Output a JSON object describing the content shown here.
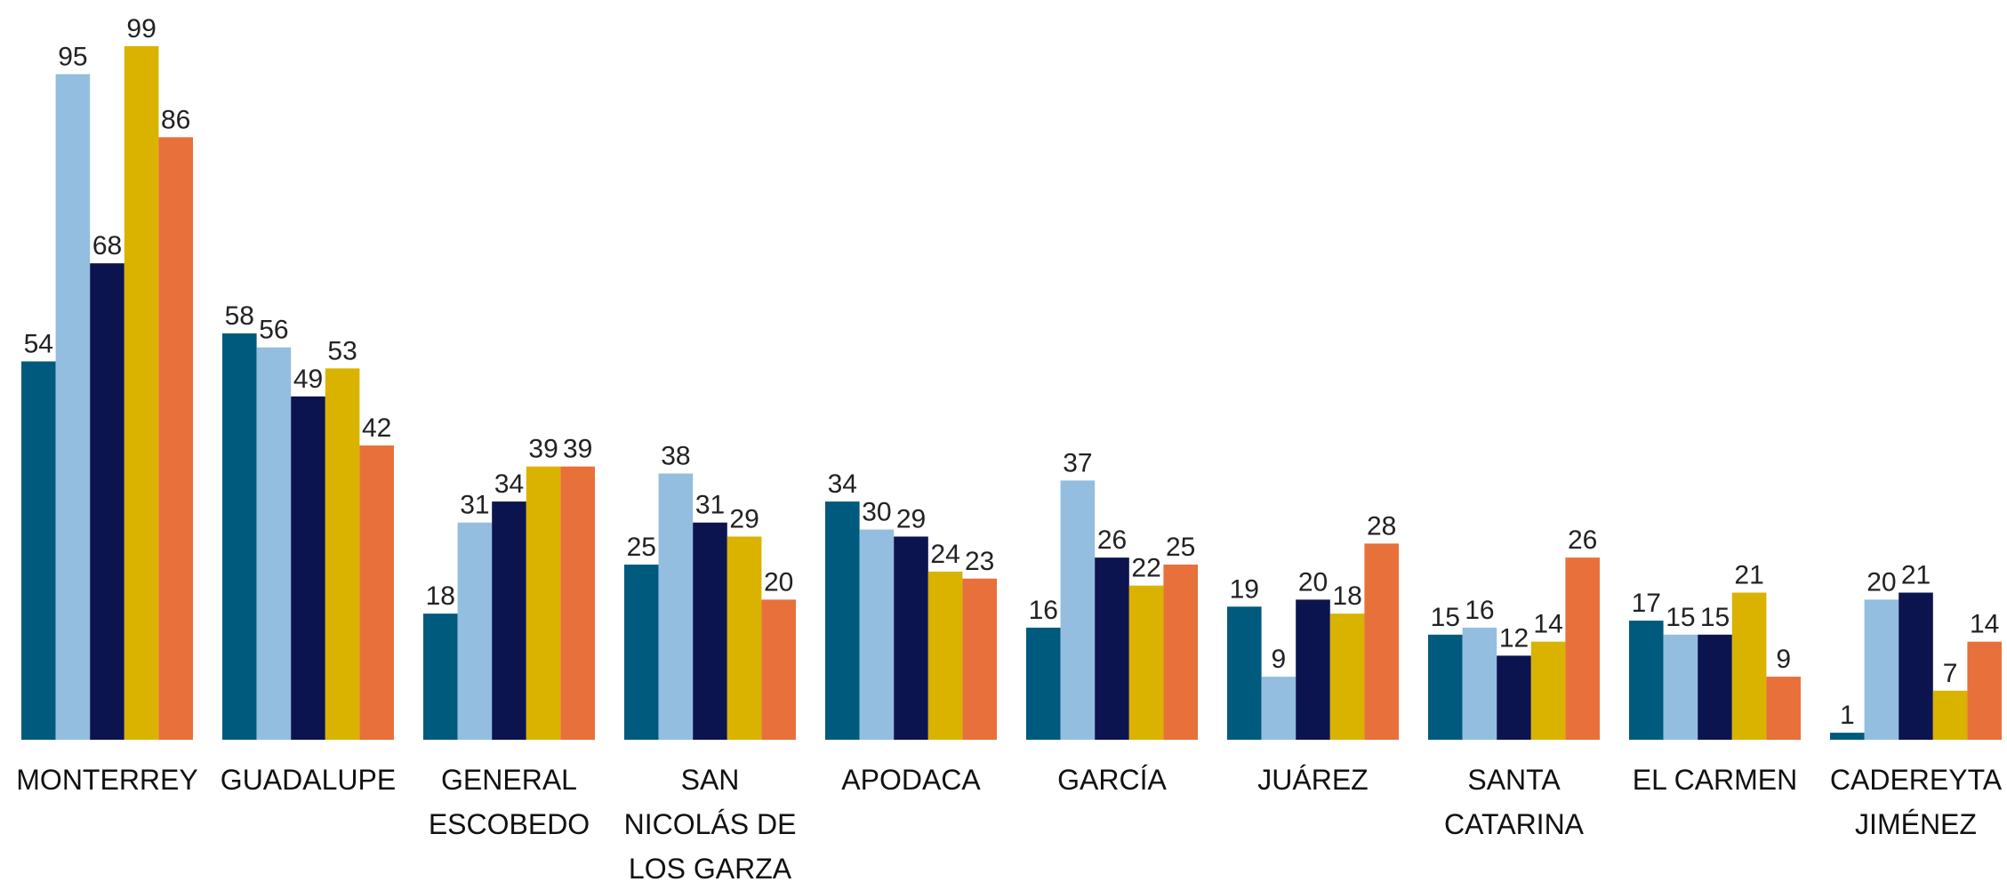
{
  "chart_data": {
    "type": "bar",
    "categories": [
      "MONTERREY",
      "GUADALUPE",
      "GENERAL\nESCOBEDO",
      "SAN\nNICOLÁS DE\nLOS GARZA",
      "APODACA",
      "GARCÍA",
      "JUÁREZ",
      "SANTA\nCATARINA",
      "EL CARMEN",
      "CADEREYTA\nJIMÉNEZ"
    ],
    "series": [
      {
        "color": "#005a7e",
        "values": [
          54,
          58,
          18,
          25,
          34,
          16,
          19,
          15,
          17,
          1
        ]
      },
      {
        "color": "#93bedf",
        "values": [
          95,
          56,
          31,
          38,
          30,
          37,
          9,
          16,
          15,
          20
        ]
      },
      {
        "color": "#0c1450",
        "values": [
          68,
          49,
          34,
          31,
          29,
          26,
          20,
          12,
          15,
          21
        ]
      },
      {
        "color": "#dab200",
        "values": [
          99,
          53,
          39,
          29,
          24,
          22,
          18,
          14,
          21,
          7
        ]
      },
      {
        "color": "#e8703a",
        "values": [
          86,
          42,
          39,
          20,
          23,
          25,
          28,
          26,
          9,
          14
        ]
      }
    ],
    "ylim": [
      0,
      100
    ]
  }
}
